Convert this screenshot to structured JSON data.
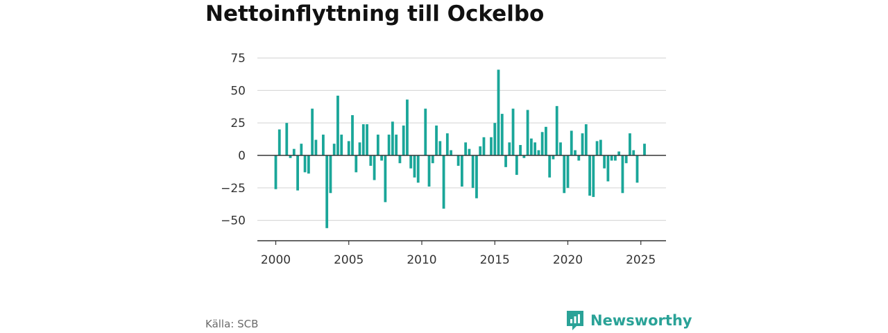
{
  "title": "Nettoinflyttning till Ockelbo",
  "source": "Källa: SCB",
  "brand": {
    "name": "Newsworthy",
    "icon": "newsworthy-logo-icon"
  },
  "colors": {
    "bar": "#1aa699",
    "grid": "#d9d9d9",
    "zero": "#333333",
    "brand": "#2aa297"
  },
  "chart_data": {
    "type": "bar",
    "ylim": [
      -60,
      80
    ],
    "yticks": [
      75,
      50,
      25,
      0,
      -25,
      -50
    ],
    "ytick_labels": [
      "75",
      "50",
      "25",
      "0",
      "−25",
      "−50"
    ],
    "xticks": [
      2000,
      2005,
      2010,
      2015,
      2020,
      2025
    ],
    "xtick_labels": [
      "2000",
      "2005",
      "2010",
      "2015",
      "2020",
      "2025"
    ],
    "x": [
      2000.0,
      2000.25,
      2000.5,
      2000.75,
      2001.0,
      2001.25,
      2001.5,
      2001.75,
      2002.0,
      2002.25,
      2002.5,
      2002.75,
      2003.0,
      2003.25,
      2003.5,
      2003.75,
      2004.0,
      2004.25,
      2004.5,
      2004.75,
      2005.0,
      2005.25,
      2005.5,
      2005.75,
      2006.0,
      2006.25,
      2006.5,
      2006.75,
      2007.0,
      2007.25,
      2007.5,
      2007.75,
      2008.0,
      2008.25,
      2008.5,
      2008.75,
      2009.0,
      2009.25,
      2009.5,
      2009.75,
      2010.0,
      2010.25,
      2010.5,
      2010.75,
      2011.0,
      2011.25,
      2011.5,
      2011.75,
      2012.0,
      2012.25,
      2012.5,
      2012.75,
      2013.0,
      2013.25,
      2013.5,
      2013.75,
      2014.0,
      2014.25,
      2014.5,
      2014.75,
      2015.0,
      2015.25,
      2015.5,
      2015.75,
      2016.0,
      2016.25,
      2016.5,
      2016.75,
      2017.0,
      2017.25,
      2017.5,
      2017.75,
      2018.0,
      2018.25,
      2018.5,
      2018.75,
      2019.0,
      2019.25,
      2019.5,
      2019.75,
      2020.0,
      2020.25,
      2020.5,
      2020.75,
      2021.0,
      2021.25,
      2021.5,
      2021.75,
      2022.0,
      2022.25,
      2022.5,
      2022.75,
      2023.0,
      2023.25,
      2023.5,
      2023.75,
      2024.0,
      2024.25,
      2024.5,
      2024.75,
      2025.0,
      2025.25
    ],
    "values": [
      -26,
      20,
      0,
      25,
      -2,
      5,
      -27,
      9,
      -13,
      -14,
      36,
      12,
      0,
      16,
      -56,
      -29,
      9,
      46,
      16,
      0,
      11,
      31,
      -13,
      10,
      24,
      24,
      -8,
      -19,
      16,
      -4,
      -36,
      16,
      26,
      16,
      -6,
      23,
      43,
      -10,
      -17,
      -21,
      0,
      36,
      -24,
      -6,
      23,
      11,
      -41,
      17,
      4,
      0,
      -8,
      -24,
      10,
      5,
      -25,
      -33,
      7,
      14,
      0,
      14,
      25,
      66,
      32,
      -9,
      10,
      36,
      -15,
      8,
      -2,
      35,
      13,
      10,
      4,
      18,
      22,
      -17,
      -3,
      38,
      10,
      -29,
      -25,
      19,
      4,
      -4,
      17,
      24,
      -31,
      -32,
      11,
      12,
      -10,
      -20,
      -4,
      -4,
      3,
      -29,
      -6,
      17,
      4,
      -21,
      0,
      9
    ]
  }
}
